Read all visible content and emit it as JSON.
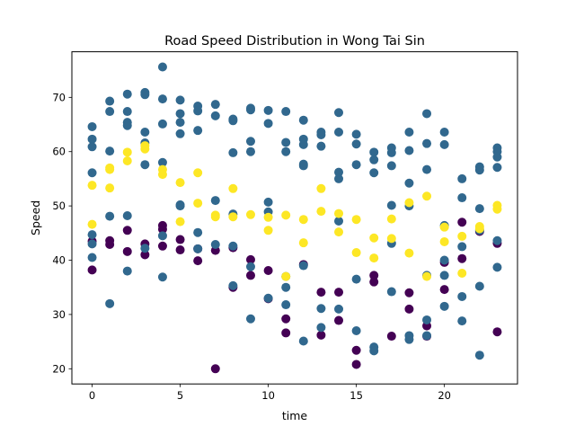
{
  "chart_data": {
    "type": "scatter",
    "title": "Road Speed Distribution in Wong Tai Sin",
    "xlabel": "time",
    "ylabel": "Speed",
    "xlim": [
      -1.15,
      24.15
    ],
    "ylim": [
      17.2,
      78.4
    ],
    "xticks": [
      0,
      5,
      10,
      15,
      20
    ],
    "yticks": [
      20,
      30,
      40,
      50,
      60,
      70
    ],
    "grid": false,
    "series": [
      {
        "color": "#440154",
        "points": [
          [
            0,
            43.5
          ],
          [
            0,
            38.2
          ],
          [
            1,
            42.9
          ],
          [
            1,
            43.6
          ],
          [
            2,
            45.5
          ],
          [
            2,
            41.6
          ],
          [
            3,
            43.0
          ],
          [
            3,
            41.0
          ],
          [
            4,
            45.7
          ],
          [
            4,
            46.4
          ],
          [
            4,
            42.6
          ],
          [
            5,
            43.8
          ],
          [
            5,
            41.9
          ],
          [
            6,
            42.1
          ],
          [
            6,
            39.9
          ],
          [
            7,
            20.0
          ],
          [
            7,
            41.8
          ],
          [
            8,
            42.3
          ],
          [
            8,
            35.0
          ],
          [
            9,
            40.1
          ],
          [
            9,
            37.2
          ],
          [
            10,
            38.1
          ],
          [
            10,
            32.9
          ],
          [
            11,
            29.2
          ],
          [
            11,
            26.6
          ],
          [
            12,
            39.2
          ],
          [
            13,
            34.1
          ],
          [
            13,
            26.2
          ],
          [
            14,
            34.1
          ],
          [
            14,
            28.9
          ],
          [
            15,
            23.4
          ],
          [
            15,
            20.8
          ],
          [
            16,
            36.0
          ],
          [
            16,
            37.2
          ],
          [
            17,
            26.0
          ],
          [
            18,
            34.0
          ],
          [
            18,
            31.0
          ],
          [
            19,
            27.9
          ],
          [
            19,
            26.0
          ],
          [
            20,
            39.6
          ],
          [
            20,
            34.6
          ],
          [
            21,
            47.0
          ],
          [
            21,
            40.3
          ],
          [
            22,
            45.3
          ],
          [
            23,
            43.1
          ],
          [
            23,
            26.8
          ]
        ]
      },
      {
        "color": "#31688e",
        "points": [
          [
            0,
            64.6
          ],
          [
            0,
            62.3
          ],
          [
            0,
            60.9
          ],
          [
            0,
            56.1
          ],
          [
            0,
            44.7
          ],
          [
            0,
            43.0
          ],
          [
            0,
            40.5
          ],
          [
            1,
            69.3
          ],
          [
            1,
            67.4
          ],
          [
            1,
            60.1
          ],
          [
            1,
            48.1
          ],
          [
            1,
            32.0
          ],
          [
            2,
            70.6
          ],
          [
            2,
            67.4
          ],
          [
            2,
            65.4
          ],
          [
            2,
            64.8
          ],
          [
            2,
            48.2
          ],
          [
            2,
            38.0
          ],
          [
            3,
            70.9
          ],
          [
            3,
            70.5
          ],
          [
            3,
            63.6
          ],
          [
            3,
            61.6
          ],
          [
            3,
            57.6
          ],
          [
            3,
            42.2
          ],
          [
            4,
            75.6
          ],
          [
            4,
            69.7
          ],
          [
            4,
            65.1
          ],
          [
            4,
            58.0
          ],
          [
            4,
            44.5
          ],
          [
            4,
            36.9
          ],
          [
            5,
            69.5
          ],
          [
            5,
            67.0
          ],
          [
            5,
            65.4
          ],
          [
            5,
            63.3
          ],
          [
            5,
            50.2
          ],
          [
            5,
            50.0
          ],
          [
            6,
            68.4
          ],
          [
            6,
            67.5
          ],
          [
            6,
            63.9
          ],
          [
            6,
            45.1
          ],
          [
            6,
            42.1
          ],
          [
            7,
            68.7
          ],
          [
            7,
            66.6
          ],
          [
            7,
            51.0
          ],
          [
            7,
            42.9
          ],
          [
            8,
            66.0
          ],
          [
            8,
            65.7
          ],
          [
            8,
            59.8
          ],
          [
            8,
            48.5
          ],
          [
            8,
            42.6
          ],
          [
            8,
            35.3
          ],
          [
            9,
            68.0
          ],
          [
            9,
            67.7
          ],
          [
            9,
            61.9
          ],
          [
            9,
            60.0
          ],
          [
            9,
            38.8
          ],
          [
            9,
            29.2
          ],
          [
            10,
            67.6
          ],
          [
            10,
            65.2
          ],
          [
            10,
            50.7
          ],
          [
            10,
            48.9
          ],
          [
            10,
            33.0
          ],
          [
            11,
            67.4
          ],
          [
            11,
            61.7
          ],
          [
            11,
            60.0
          ],
          [
            11,
            37.0
          ],
          [
            11,
            35.0
          ],
          [
            11,
            31.8
          ],
          [
            12,
            65.8
          ],
          [
            12,
            62.3
          ],
          [
            12,
            61.3
          ],
          [
            12,
            57.7
          ],
          [
            12,
            57.4
          ],
          [
            12,
            39.0
          ],
          [
            12,
            25.1
          ],
          [
            13,
            63.6
          ],
          [
            13,
            63.1
          ],
          [
            13,
            61.0
          ],
          [
            13,
            31.1
          ],
          [
            13,
            27.6
          ],
          [
            14,
            67.2
          ],
          [
            14,
            63.6
          ],
          [
            14,
            56.2
          ],
          [
            14,
            55.0
          ],
          [
            14,
            47.2
          ],
          [
            14,
            31.0
          ],
          [
            15,
            63.2
          ],
          [
            15,
            61.4
          ],
          [
            15,
            57.6
          ],
          [
            15,
            36.5
          ],
          [
            15,
            27.0
          ],
          [
            16,
            58.5
          ],
          [
            16,
            56.1
          ],
          [
            16,
            59.9
          ],
          [
            16,
            24.0
          ],
          [
            16,
            23.3
          ],
          [
            17,
            60.7
          ],
          [
            17,
            59.8
          ],
          [
            17,
            57.4
          ],
          [
            17,
            50.1
          ],
          [
            17,
            43.1
          ],
          [
            17,
            34.2
          ],
          [
            18,
            63.6
          ],
          [
            18,
            60.2
          ],
          [
            18,
            54.2
          ],
          [
            18,
            50.0
          ],
          [
            18,
            26.1
          ],
          [
            18,
            25.4
          ],
          [
            19,
            67.0
          ],
          [
            19,
            61.5
          ],
          [
            19,
            56.7
          ],
          [
            19,
            37.2
          ],
          [
            19,
            29.0
          ],
          [
            19,
            26.1
          ],
          [
            20,
            63.6
          ],
          [
            20,
            61.3
          ],
          [
            20,
            46.4
          ],
          [
            20,
            40.0
          ],
          [
            20,
            37.2
          ],
          [
            20,
            31.5
          ],
          [
            21,
            55.0
          ],
          [
            21,
            51.5
          ],
          [
            21,
            42.5
          ],
          [
            21,
            33.3
          ],
          [
            21,
            28.8
          ],
          [
            22,
            57.2
          ],
          [
            22,
            56.6
          ],
          [
            22,
            49.5
          ],
          [
            22,
            45.5
          ],
          [
            22,
            35.2
          ],
          [
            22,
            22.5
          ],
          [
            23,
            60.7
          ],
          [
            23,
            60.0
          ],
          [
            23,
            59.0
          ],
          [
            23,
            57.1
          ],
          [
            23,
            43.6
          ],
          [
            23,
            38.7
          ]
        ]
      },
      {
        "color": "#fde725",
        "points": [
          [
            0,
            53.8
          ],
          [
            0,
            46.6
          ],
          [
            1,
            56.7
          ],
          [
            1,
            57.0
          ],
          [
            1,
            53.3
          ],
          [
            2,
            59.9
          ],
          [
            2,
            58.3
          ],
          [
            3,
            60.5
          ],
          [
            3,
            61.1
          ],
          [
            4,
            56.7
          ],
          [
            4,
            55.8
          ],
          [
            5,
            54.3
          ],
          [
            5,
            47.1
          ],
          [
            6,
            56.1
          ],
          [
            6,
            50.5
          ],
          [
            7,
            48.3
          ],
          [
            7,
            48.0
          ],
          [
            8,
            53.2
          ],
          [
            8,
            48.0
          ],
          [
            9,
            48.4
          ],
          [
            10,
            47.9
          ],
          [
            10,
            45.5
          ],
          [
            11,
            48.3
          ],
          [
            11,
            37.0
          ],
          [
            12,
            47.5
          ],
          [
            12,
            43.2
          ],
          [
            13,
            53.2
          ],
          [
            13,
            49.0
          ],
          [
            14,
            48.6
          ],
          [
            14,
            45.2
          ],
          [
            15,
            47.5
          ],
          [
            15,
            41.4
          ],
          [
            16,
            44.1
          ],
          [
            16,
            40.4
          ],
          [
            17,
            47.6
          ],
          [
            17,
            44.0
          ],
          [
            18,
            50.6
          ],
          [
            18,
            41.3
          ],
          [
            19,
            51.8
          ],
          [
            19,
            37.0
          ],
          [
            20,
            46.1
          ],
          [
            20,
            43.4
          ],
          [
            21,
            44.4
          ],
          [
            21,
            37.6
          ],
          [
            22,
            46.2
          ],
          [
            22,
            45.8
          ],
          [
            23,
            50.1
          ],
          [
            23,
            49.4
          ]
        ]
      }
    ]
  }
}
